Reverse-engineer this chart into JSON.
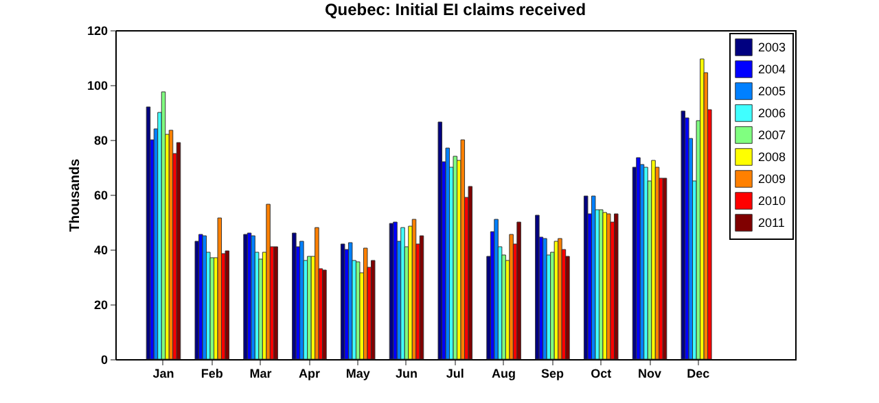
{
  "chart_data": {
    "type": "bar",
    "title": "Quebec: Initial EI claims received",
    "ylabel": "Thousands",
    "categories": [
      "Jan",
      "Feb",
      "Mar",
      "Apr",
      "May",
      "Jun",
      "Jul",
      "Aug",
      "Sep",
      "Oct",
      "Nov",
      "Dec"
    ],
    "ylim": [
      0,
      120
    ],
    "yticks": [
      0,
      20,
      40,
      60,
      80,
      100,
      120
    ],
    "legend": "top right",
    "series": [
      {
        "name": "2003",
        "color": "#000080",
        "values": [
          92,
          43,
          45.5,
          46,
          42,
          49.5,
          86.5,
          37.5,
          52.5,
          59.5,
          70,
          90.5
        ]
      },
      {
        "name": "2004",
        "color": "#0000ff",
        "values": [
          80,
          45.5,
          46,
          41,
          40,
          50,
          72,
          46.5,
          44.5,
          53,
          73.5,
          88
        ]
      },
      {
        "name": "2005",
        "color": "#0080ff",
        "values": [
          84,
          45,
          45,
          43,
          42.5,
          43,
          77,
          51,
          44,
          59.5,
          71,
          80.5
        ]
      },
      {
        "name": "2006",
        "color": "#40ffff",
        "values": [
          90,
          39,
          39,
          36,
          36,
          48,
          70,
          41,
          38,
          54.5,
          70,
          65
        ]
      },
      {
        "name": "2007",
        "color": "#80ff80",
        "values": [
          97.5,
          37,
          36.5,
          37.5,
          35.5,
          41,
          74,
          38,
          39,
          54.5,
          65,
          87
        ]
      },
      {
        "name": "2008",
        "color": "#ffff00",
        "values": [
          82,
          37,
          39,
          37.5,
          31.5,
          48.5,
          72.5,
          36,
          43,
          53.5,
          72.5,
          109.5
        ]
      },
      {
        "name": "2009",
        "color": "#ff8000",
        "values": [
          83.5,
          51.5,
          56.5,
          48,
          40.5,
          51,
          80,
          45.5,
          44,
          53,
          70,
          104.5
        ]
      },
      {
        "name": "2010",
        "color": "#ff0000",
        "values": [
          75,
          38.5,
          41,
          33,
          33.5,
          42,
          59,
          42,
          40,
          50,
          66,
          91
        ]
      },
      {
        "name": "2011",
        "color": "#800000",
        "values": [
          79,
          39.5,
          41,
          32.5,
          36,
          45,
          63,
          50,
          37.5,
          53,
          66,
          null
        ]
      }
    ]
  }
}
